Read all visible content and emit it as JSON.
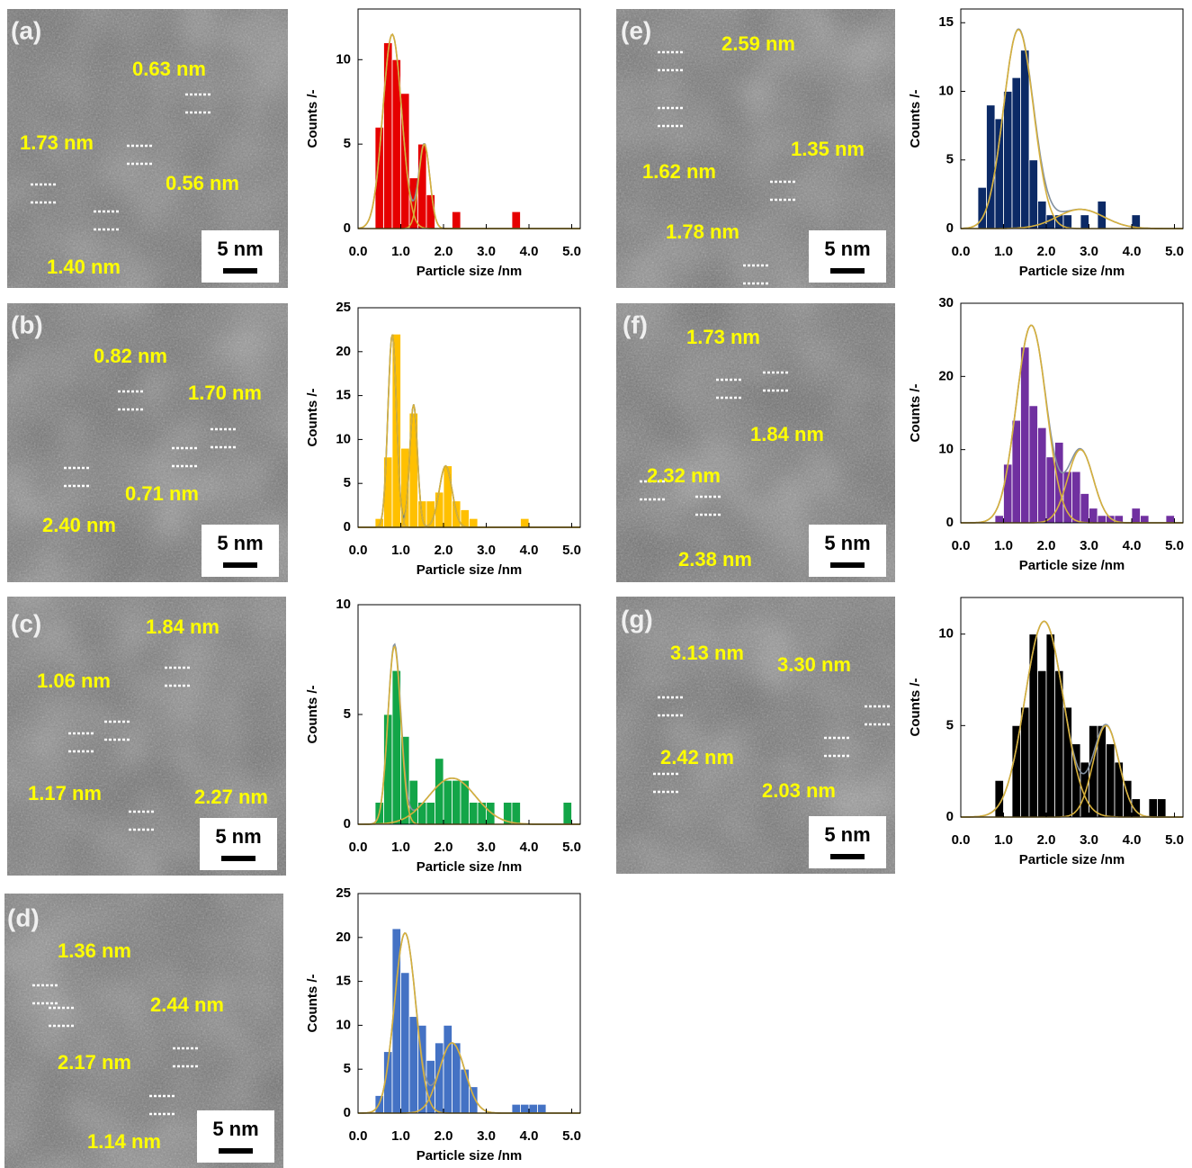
{
  "images": [
    {
      "label": "(a)",
      "measurements": [
        "0.63 nm",
        "1.73 nm",
        "0.56 nm",
        "1.40 nm"
      ],
      "scale_bar": "5 nm"
    },
    {
      "label": "(b)",
      "measurements": [
        "0.82 nm",
        "1.70 nm",
        "0.71 nm",
        "2.40 nm"
      ],
      "scale_bar": "5 nm"
    },
    {
      "label": "(c)",
      "measurements": [
        "1.84 nm",
        "1.06 nm",
        "1.17 nm",
        "2.27 nm"
      ],
      "scale_bar": "5 nm"
    },
    {
      "label": "(d)",
      "measurements": [
        "1.36 nm",
        "2.17 nm",
        "2.44 nm",
        "1.14 nm"
      ],
      "scale_bar": "5 nm"
    },
    {
      "label": "(e)",
      "measurements": [
        "2.59 nm",
        "1.62 nm",
        "1.35 nm",
        "1.78 nm"
      ],
      "scale_bar": "5 nm"
    },
    {
      "label": "(f)",
      "measurements": [
        "1.73 nm",
        "1.84 nm",
        "2.32 nm",
        "2.38 nm"
      ],
      "scale_bar": "5 nm"
    },
    {
      "label": "(g)",
      "measurements": [
        "3.13 nm",
        "3.30 nm",
        "2.42 nm",
        "2.03 nm"
      ],
      "scale_bar": "5 nm"
    }
  ],
  "chart_data": [
    {
      "type": "histogram",
      "color": "#e60000",
      "bins": [
        0,
        0.2,
        0.4,
        0.6,
        0.8,
        1.0,
        1.2,
        1.4,
        1.6,
        1.8,
        2.0,
        2.2,
        2.4,
        2.6,
        2.8,
        3.0,
        3.2,
        3.4,
        3.6,
        3.8,
        4.0,
        4.2,
        4.4,
        4.6,
        4.8,
        5.0
      ],
      "values": [
        0,
        0,
        6,
        11,
        10,
        8,
        3,
        5,
        2,
        0,
        0,
        1,
        0,
        0,
        0,
        0,
        0,
        0,
        1,
        0,
        0,
        0,
        0,
        0,
        0
      ],
      "xlim": [
        0,
        5.2
      ],
      "xticks": [
        {
          "value": 0,
          "label": "0.0"
        },
        {
          "value": 1,
          "label": "1.0"
        },
        {
          "value": 2,
          "label": "2.0"
        },
        {
          "value": 3,
          "label": "3.0"
        },
        {
          "value": 4,
          "label": "4.0"
        },
        {
          "value": 5,
          "label": "5.0"
        }
      ],
      "ylim": [
        0,
        13
      ],
      "yticks": [
        0,
        5,
        10
      ],
      "xlabel": "Particle size /nm",
      "ylabel": "Counts /-",
      "fit_color": "#d6b03c",
      "sum_color": "#8391a0",
      "fits": [
        {
          "mean": 0.8,
          "sd": 0.22,
          "peak": 11.5
        },
        {
          "mean": 1.55,
          "sd": 0.13,
          "peak": 5
        }
      ]
    },
    {
      "type": "histogram",
      "color": "#ffc000",
      "bins": [
        0,
        0.2,
        0.4,
        0.6,
        0.8,
        1.0,
        1.2,
        1.4,
        1.6,
        1.8,
        2.0,
        2.2,
        2.4,
        2.6,
        2.8,
        3.0,
        3.2,
        3.4,
        3.6,
        3.8,
        4.0,
        4.2,
        4.4,
        4.6,
        4.8,
        5.0
      ],
      "values": [
        0,
        0,
        1,
        8,
        22,
        9,
        13,
        3,
        3,
        4,
        7,
        3,
        2,
        1,
        0,
        0,
        0,
        0,
        0,
        1,
        0,
        0,
        0,
        0,
        0
      ],
      "xlim": [
        0,
        5.2
      ],
      "xticks": [
        {
          "value": 0,
          "label": "0.0"
        },
        {
          "value": 1,
          "label": "1.0"
        },
        {
          "value": 2,
          "label": "2.0"
        },
        {
          "value": 3,
          "label": "3.0"
        },
        {
          "value": 4,
          "label": "4.0"
        },
        {
          "value": 5,
          "label": "5.0"
        }
      ],
      "ylim": [
        0,
        25
      ],
      "yticks": [
        0,
        5,
        10,
        15,
        20,
        25
      ],
      "xlabel": "Particle size /nm",
      "ylabel": "Counts /-",
      "fit_color": "#d6b03c",
      "sum_color": "#44709a",
      "fits": [
        {
          "mean": 0.8,
          "sd": 0.1,
          "peak": 22
        },
        {
          "mean": 1.3,
          "sd": 0.09,
          "peak": 14
        },
        {
          "mean": 2.05,
          "sd": 0.15,
          "peak": 7
        }
      ]
    },
    {
      "type": "histogram",
      "color": "#13a548",
      "bins": [
        0,
        0.2,
        0.4,
        0.6,
        0.8,
        1.0,
        1.2,
        1.4,
        1.6,
        1.8,
        2.0,
        2.2,
        2.4,
        2.6,
        2.8,
        3.0,
        3.2,
        3.4,
        3.6,
        3.8,
        4.0,
        4.2,
        4.4,
        4.6,
        4.8,
        5.0
      ],
      "values": [
        0,
        0,
        1,
        5,
        7,
        4,
        2,
        1,
        1,
        3,
        2,
        2,
        2,
        1,
        1,
        1,
        0,
        1,
        1,
        0,
        0,
        0,
        0,
        0,
        1
      ],
      "xlim": [
        0,
        5.2
      ],
      "xticks": [
        {
          "value": 0,
          "label": "0.0"
        },
        {
          "value": 1,
          "label": "1.0"
        },
        {
          "value": 2,
          "label": "2.0"
        },
        {
          "value": 3,
          "label": "3.0"
        },
        {
          "value": 4,
          "label": "4.0"
        },
        {
          "value": 5,
          "label": "5.0"
        }
      ],
      "ylim": [
        0,
        10
      ],
      "yticks": [
        0,
        5,
        10
      ],
      "xlabel": "Particle size /nm",
      "ylabel": "Counts /-",
      "fit_color": "#d6b03c",
      "sum_color": "#8391a0",
      "fits": [
        {
          "mean": 0.85,
          "sd": 0.15,
          "peak": 8.1
        },
        {
          "mean": 2.2,
          "sd": 0.55,
          "peak": 2.1
        }
      ]
    },
    {
      "type": "histogram",
      "color": "#4472c4",
      "bins": [
        0,
        0.2,
        0.4,
        0.6,
        0.8,
        1.0,
        1.2,
        1.4,
        1.6,
        1.8,
        2.0,
        2.2,
        2.4,
        2.6,
        2.8,
        3.0,
        3.2,
        3.4,
        3.6,
        3.8,
        4.0,
        4.2,
        4.4,
        4.6,
        4.8,
        5.0
      ],
      "values": [
        0,
        0,
        2,
        7,
        21,
        16,
        11,
        10,
        6,
        8,
        10,
        8,
        5,
        3,
        0,
        0,
        0,
        0,
        1,
        1,
        1,
        1,
        0,
        0,
        0
      ],
      "xlim": [
        0,
        5.2
      ],
      "xticks": [
        {
          "value": 0,
          "label": "0.0"
        },
        {
          "value": 1,
          "label": "1.0"
        },
        {
          "value": 2,
          "label": "2.0"
        },
        {
          "value": 3,
          "label": "3.0"
        },
        {
          "value": 4,
          "label": "4.0"
        },
        {
          "value": 5,
          "label": "5.0"
        }
      ],
      "ylim": [
        0,
        25
      ],
      "yticks": [
        0,
        5,
        10,
        15,
        20,
        25
      ],
      "xlabel": "Particle size /nm",
      "ylabel": "Counts /-",
      "fit_color": "#d6b03c",
      "sum_color": "#8391a0",
      "fits": [
        {
          "mean": 1.1,
          "sd": 0.25,
          "peak": 20.5
        },
        {
          "mean": 2.2,
          "sd": 0.3,
          "peak": 8
        }
      ]
    },
    {
      "type": "histogram",
      "color": "#0c2a66",
      "bins": [
        0,
        0.2,
        0.4,
        0.6,
        0.8,
        1.0,
        1.2,
        1.4,
        1.6,
        1.8,
        2.0,
        2.2,
        2.4,
        2.6,
        2.8,
        3.0,
        3.2,
        3.4,
        3.6,
        3.8,
        4.0,
        4.2,
        4.4,
        4.6,
        4.8,
        5.0
      ],
      "values": [
        0,
        0,
        3,
        9,
        8,
        10,
        11,
        13,
        5,
        2,
        1,
        1,
        1,
        0,
        1,
        0,
        2,
        0,
        0,
        0,
        1,
        0,
        0,
        0,
        0
      ],
      "xlim": [
        0,
        5.2
      ],
      "xticks": [
        {
          "value": 0,
          "label": "0.0"
        },
        {
          "value": 1,
          "label": "1.0"
        },
        {
          "value": 2,
          "label": "2.0"
        },
        {
          "value": 3,
          "label": "3.0"
        },
        {
          "value": 4,
          "label": "4.0"
        },
        {
          "value": 5,
          "label": "5.0"
        }
      ],
      "ylim": [
        0,
        16
      ],
      "yticks": [
        0,
        5,
        10,
        15
      ],
      "xlabel": "Particle size /nm",
      "ylabel": "Counts /-",
      "fit_color": "#d6b03c",
      "sum_color": "#8391a0",
      "fits": [
        {
          "mean": 1.35,
          "sd": 0.35,
          "peak": 14.5
        },
        {
          "mean": 2.8,
          "sd": 0.55,
          "peak": 1.4
        }
      ]
    },
    {
      "type": "histogram",
      "color": "#7030a0",
      "bins": [
        0,
        0.2,
        0.4,
        0.6,
        0.8,
        1.0,
        1.2,
        1.4,
        1.6,
        1.8,
        2.0,
        2.2,
        2.4,
        2.6,
        2.8,
        3.0,
        3.2,
        3.4,
        3.6,
        3.8,
        4.0,
        4.2,
        4.4,
        4.6,
        4.8,
        5.0
      ],
      "values": [
        0,
        0,
        0,
        0,
        1,
        8,
        14,
        24,
        16,
        13,
        9,
        11,
        7,
        7,
        4,
        2,
        1,
        1,
        1,
        0,
        2,
        1,
        0,
        0,
        1
      ],
      "xlim": [
        0,
        5.2
      ],
      "xticks": [
        {
          "value": 0,
          "label": "0.0"
        },
        {
          "value": 1,
          "label": "1.0"
        },
        {
          "value": 2,
          "label": "2.0"
        },
        {
          "value": 3,
          "label": "3.0"
        },
        {
          "value": 4,
          "label": "4.0"
        },
        {
          "value": 5,
          "label": "5.0"
        }
      ],
      "ylim": [
        0,
        30
      ],
      "yticks": [
        0,
        10,
        20,
        30
      ],
      "xlabel": "Particle size /nm",
      "ylabel": "Counts /-",
      "fit_color": "#d6b03c",
      "sum_color": "#8391a0",
      "fits": [
        {
          "mean": 1.65,
          "sd": 0.35,
          "peak": 27
        },
        {
          "mean": 2.8,
          "sd": 0.3,
          "peak": 10
        }
      ]
    },
    {
      "type": "histogram",
      "color": "#000000",
      "bins": [
        0,
        0.2,
        0.4,
        0.6,
        0.8,
        1.0,
        1.2,
        1.4,
        1.6,
        1.8,
        2.0,
        2.2,
        2.4,
        2.6,
        2.8,
        3.0,
        3.2,
        3.4,
        3.6,
        3.8,
        4.0,
        4.2,
        4.4,
        4.6,
        4.8,
        5.0
      ],
      "values": [
        0,
        0,
        0,
        0,
        2,
        0,
        5,
        6,
        10,
        8,
        10,
        8,
        6,
        4,
        3,
        5,
        5,
        4,
        3,
        2,
        1,
        0,
        1,
        1,
        0
      ],
      "xlim": [
        0,
        5.2
      ],
      "xticks": [
        {
          "value": 0,
          "label": "0.0"
        },
        {
          "value": 1,
          "label": "1.0"
        },
        {
          "value": 2,
          "label": "2.0"
        },
        {
          "value": 3,
          "label": "3.0"
        },
        {
          "value": 4,
          "label": "4.0"
        },
        {
          "value": 5,
          "label": "5.0"
        }
      ],
      "ylim": [
        0,
        12
      ],
      "yticks": [
        0,
        5,
        10
      ],
      "xlabel": "Particle size /nm",
      "ylabel": "Counts /-",
      "fit_color": "#d6b03c",
      "sum_color": "#8391a0",
      "fits": [
        {
          "mean": 1.95,
          "sd": 0.45,
          "peak": 10.7
        },
        {
          "mean": 3.4,
          "sd": 0.3,
          "peak": 5
        }
      ]
    }
  ]
}
